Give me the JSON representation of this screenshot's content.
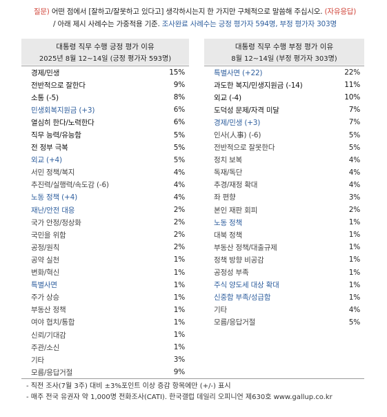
{
  "question": {
    "prefix": "질문)",
    "text": "어떤 점에서 [잘하고/잘못하고 있다고] 생각하시는지 한 가지만 구체적으로 말씀해 주십시오.",
    "open_tag": "(자유응답)",
    "line2_a": "/ 아래 제시 사례수는 가중적용 기준.",
    "line2_b": "조사완료 사례수는 긍정 평가자 594명, 부정 평가자 303명"
  },
  "positive": {
    "title": "대통령 직무 수행 긍정 평가 이유",
    "subtitle": "2025년 8월 12~14일 (긍정 평가자 593명)",
    "rows": [
      {
        "label": "경제/민생",
        "value": "15%",
        "style": "dark"
      },
      {
        "label": "전반적으로 잘한다",
        "value": "9%",
        "style": "dark"
      },
      {
        "label": "소통 (-5)",
        "value": "8%",
        "style": "dark"
      },
      {
        "label": "민생회복지원금 (+3)",
        "value": "6%",
        "style": "hl"
      },
      {
        "label": "열심히 한다/노력한다",
        "value": "6%",
        "style": "dark"
      },
      {
        "label": "직무 능력/유능함",
        "value": "5%",
        "style": "dark"
      },
      {
        "label": "전 정부 극복",
        "value": "5%",
        "style": "dark"
      },
      {
        "label": "외교 (+4)",
        "value": "5%",
        "style": "hl"
      },
      {
        "label": "서민 정책/복지",
        "value": "4%",
        "style": "grey"
      },
      {
        "label": "추진력/실행력/속도감 (-6)",
        "value": "4%",
        "style": "grey"
      },
      {
        "label": "노동 정책 (+4)",
        "value": "4%",
        "style": "hl"
      },
      {
        "label": "재난/안전 대응",
        "value": "2%",
        "style": "hl"
      },
      {
        "label": "국가 안정/정상화",
        "value": "2%",
        "style": "grey"
      },
      {
        "label": "국민을 위함",
        "value": "2%",
        "style": "grey"
      },
      {
        "label": "공정/원칙",
        "value": "2%",
        "style": "grey"
      },
      {
        "label": "공약 실천",
        "value": "1%",
        "style": "grey"
      },
      {
        "label": "변화/혁신",
        "value": "1%",
        "style": "grey"
      },
      {
        "label": "특별사면",
        "value": "1%",
        "style": "hl"
      },
      {
        "label": "주가 상승",
        "value": "1%",
        "style": "grey"
      },
      {
        "label": "부동산 정책",
        "value": "1%",
        "style": "grey"
      },
      {
        "label": "여야 협치/통합",
        "value": "1%",
        "style": "grey"
      },
      {
        "label": "신뢰/기대감",
        "value": "1%",
        "style": "grey"
      },
      {
        "label": "주관/소신",
        "value": "1%",
        "style": "grey"
      },
      {
        "label": "기타",
        "value": "3%",
        "style": "grey"
      },
      {
        "label": "모름/응답거절",
        "value": "9%",
        "style": "grey"
      }
    ]
  },
  "negative": {
    "title": "대통령 직무 수행 부정 평가 이유",
    "subtitle": "8월 12~14일 (부정 평가자 303명)",
    "rows": [
      {
        "label": "특별사면 (+22)",
        "value": "22%",
        "style": "hl"
      },
      {
        "label": "과도한 복지/민생지원금 (-14)",
        "value": "11%",
        "style": "dark"
      },
      {
        "label": "외교 (-4)",
        "value": "10%",
        "style": "dark"
      },
      {
        "label": "도덕성 문제/자격 미달",
        "value": "7%",
        "style": "dark"
      },
      {
        "label": "경제/민생 (+3)",
        "value": "7%",
        "style": "hl"
      },
      {
        "label": "인사(人事) (-6)",
        "value": "5%",
        "style": "grey"
      },
      {
        "label": "전반적으로 잘못한다",
        "value": "5%",
        "style": "grey"
      },
      {
        "label": "정치 보복",
        "value": "4%",
        "style": "grey"
      },
      {
        "label": "독재/독단",
        "value": "4%",
        "style": "grey"
      },
      {
        "label": "추경/재정 확대",
        "value": "4%",
        "style": "grey"
      },
      {
        "label": "좌 편향",
        "value": "3%",
        "style": "grey"
      },
      {
        "label": "본인 재판 회피",
        "value": "2%",
        "style": "grey"
      },
      {
        "label": "노동 정책",
        "value": "1%",
        "style": "hl"
      },
      {
        "label": "대북 정책",
        "value": "1%",
        "style": "grey"
      },
      {
        "label": "부동산 정책/대출규제",
        "value": "1%",
        "style": "grey"
      },
      {
        "label": "정책 방향 비공감",
        "value": "1%",
        "style": "grey"
      },
      {
        "label": "공정성 부족",
        "value": "1%",
        "style": "grey"
      },
      {
        "label": "주식 양도세 대상 확대",
        "value": "1%",
        "style": "hl"
      },
      {
        "label": "신중함 부족/성급함",
        "value": "1%",
        "style": "hl"
      },
      {
        "label": "기타",
        "value": "4%",
        "style": "grey"
      },
      {
        "label": "모름/응답거절",
        "value": "5%",
        "style": "grey"
      }
    ]
  },
  "notes": [
    "- 직전 조사(7월 3주) 대비 ±3%포인트 이상 증감 항목에만 (+/-) 표시",
    "- 매주 전국 유권자 약 1,000명 전화조사(CATI). 한국갤럽 데일리 오피니언 제630호 www.gallup.co.kr"
  ],
  "colors": {
    "accent_red": "#d0453a",
    "accent_blue": "#2f5f9e",
    "header_bg": "#e9e9e9"
  }
}
